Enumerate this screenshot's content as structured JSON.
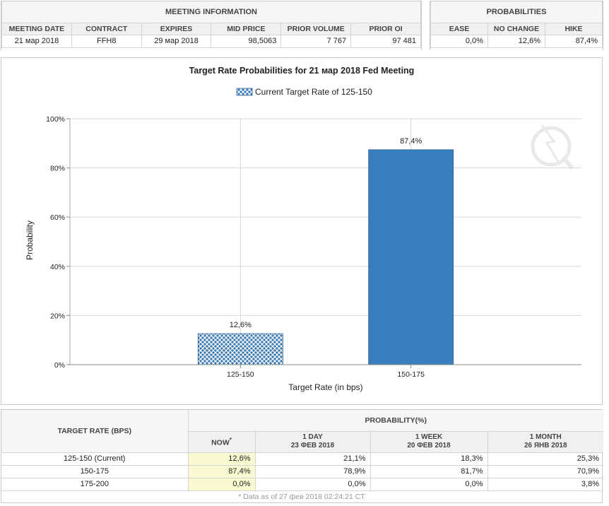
{
  "meeting_info": {
    "title": "MEETING INFORMATION",
    "headers": [
      "MEETING DATE",
      "CONTRACT",
      "EXPIRES",
      "MID PRICE",
      "PRIOR VOLUME",
      "PRIOR OI"
    ],
    "values": [
      "21 мар 2018",
      "FFH8",
      "29 мар 2018",
      "98,5063",
      "7 767",
      "97 481"
    ]
  },
  "probabilities": {
    "title": "PROBABILITIES",
    "headers": [
      "EASE",
      "NO CHANGE",
      "HIKE"
    ],
    "values": [
      "0,0%",
      "12,6%",
      "87,4%"
    ]
  },
  "chart_data": {
    "type": "bar",
    "title": "Target Rate Probabilities for 21 мар 2018 Fed Meeting",
    "legend": "Current Target Rate of 125-150",
    "categories": [
      "125-150",
      "150-175"
    ],
    "values": [
      12.6,
      87.4
    ],
    "value_labels": [
      "12,6%",
      "87,4%"
    ],
    "xlabel": "Target Rate (in bps)",
    "ylabel": "Probability",
    "ylim": [
      0,
      100
    ],
    "yticks": [
      "0%",
      "20%",
      "40%",
      "60%",
      "80%",
      "100%"
    ],
    "grid": true,
    "colors": {
      "current": "#3a78b5",
      "other": "#3a7fbd"
    }
  },
  "prob_table": {
    "target_header": "TARGET RATE (BPS)",
    "group_header": "PROBABILITY(%)",
    "col_now": "NOW",
    "col_now_mark": "*",
    "cols": [
      {
        "label": "1 DAY",
        "date": "23 ФЕВ 2018"
      },
      {
        "label": "1 WEEK",
        "date": "20 ФЕВ 2018"
      },
      {
        "label": "1 MONTH",
        "date": "26 ЯНВ 2018"
      }
    ],
    "rows": [
      {
        "rate": "125-150 (Current)",
        "now": "12,6%",
        "d1": "21,1%",
        "w1": "18,3%",
        "m1": "25,3%"
      },
      {
        "rate": "150-175",
        "now": "87,4%",
        "d1": "78,9%",
        "w1": "81,7%",
        "m1": "70,9%"
      },
      {
        "rate": "175-200",
        "now": "0,0%",
        "d1": "0,0%",
        "w1": "0,0%",
        "m1": "3,8%"
      }
    ],
    "footnote": "* Data as of 27 фев 2018 02:24:21 CT"
  }
}
